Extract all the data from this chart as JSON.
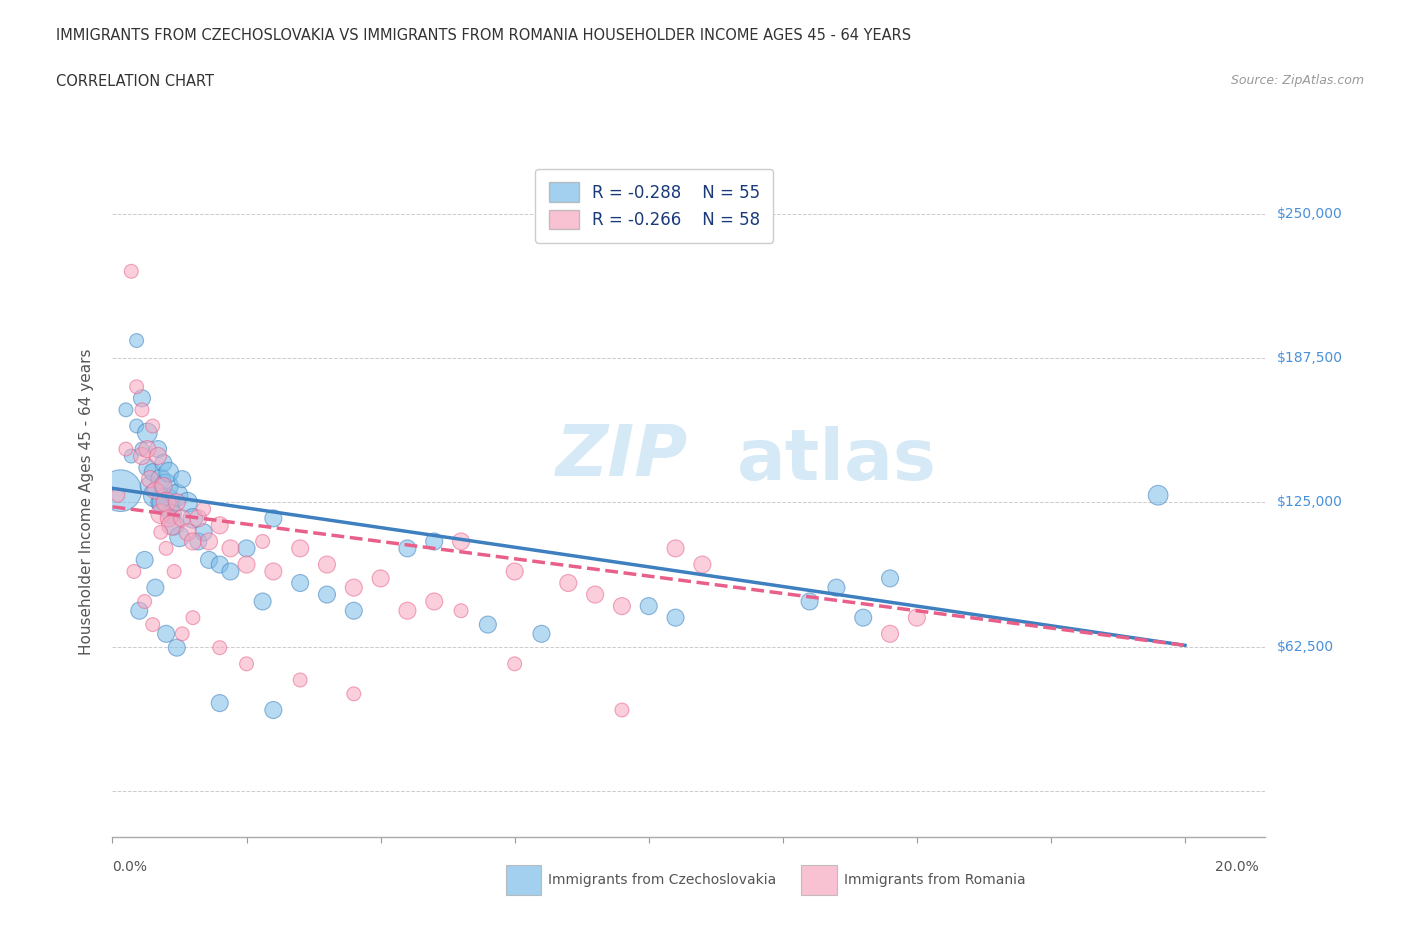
{
  "title_line1": "IMMIGRANTS FROM CZECHOSLOVAKIA VS IMMIGRANTS FROM ROMANIA HOUSEHOLDER INCOME AGES 45 - 64 YEARS",
  "title_line2": "CORRELATION CHART",
  "source": "Source: ZipAtlas.com",
  "xlabel_ticks": [
    "0.0%",
    "20.0%"
  ],
  "xlabel_tick_vals": [
    0.0,
    20.0
  ],
  "ylabel_tick_vals": [
    0,
    62500,
    125000,
    187500,
    250000
  ],
  "ylabel_right_labels": [
    "$250,000",
    "$187,500",
    "$125,000",
    "$62,500"
  ],
  "ylabel_right_vals": [
    250000,
    187500,
    125000,
    62500
  ],
  "xlim": [
    0.0,
    21.5
  ],
  "ylim": [
    -20000,
    270000
  ],
  "ylabel": "Householder Income Ages 45 - 64 years",
  "legend_labels": [
    "Immigrants from Czechoslovakia",
    "Immigrants from Romania"
  ],
  "r_czech": -0.288,
  "r_rom": -0.266,
  "color_czech": "#7bbde8",
  "color_rom": "#f7a8bf",
  "color_czech_line": "#3e7fbf",
  "color_rom_line": "#e8608a",
  "czech_intercept": 131000,
  "czech_slope": -3400,
  "rom_intercept": 123000,
  "rom_slope": -3000,
  "czech_x": [
    0.15,
    0.25,
    0.35,
    0.45,
    0.45,
    0.55,
    0.55,
    0.65,
    0.65,
    0.7,
    0.75,
    0.8,
    0.85,
    0.9,
    0.9,
    0.95,
    1.0,
    1.0,
    1.05,
    1.1,
    1.15,
    1.2,
    1.25,
    1.3,
    1.4,
    1.5,
    1.6,
    1.7,
    1.8,
    2.0,
    2.2,
    2.5,
    2.8,
    3.0,
    3.5,
    4.0,
    4.5,
    5.5,
    6.0,
    7.0,
    8.0,
    10.0,
    10.5,
    13.0,
    13.5,
    14.0,
    14.5,
    19.5,
    2.0,
    3.0,
    0.5,
    0.6,
    0.8,
    1.0,
    1.2
  ],
  "czech_y": [
    130000,
    165000,
    145000,
    195000,
    158000,
    170000,
    148000,
    155000,
    140000,
    132000,
    138000,
    128000,
    148000,
    135000,
    125000,
    142000,
    125000,
    132000,
    138000,
    120000,
    115000,
    128000,
    110000,
    135000,
    125000,
    118000,
    108000,
    112000,
    100000,
    98000,
    95000,
    105000,
    82000,
    118000,
    90000,
    85000,
    78000,
    105000,
    108000,
    72000,
    68000,
    80000,
    75000,
    82000,
    88000,
    75000,
    92000,
    128000,
    38000,
    35000,
    78000,
    100000,
    88000,
    68000,
    62000
  ],
  "czech_size": [
    900,
    100,
    100,
    100,
    100,
    150,
    100,
    200,
    150,
    200,
    150,
    300,
    150,
    200,
    200,
    150,
    400,
    300,
    200,
    200,
    200,
    250,
    200,
    150,
    200,
    200,
    150,
    150,
    150,
    150,
    150,
    150,
    150,
    150,
    150,
    150,
    150,
    150,
    150,
    150,
    150,
    150,
    150,
    150,
    150,
    150,
    150,
    200,
    150,
    150,
    150,
    150,
    150,
    150,
    150
  ],
  "rom_x": [
    0.1,
    0.25,
    0.35,
    0.45,
    0.55,
    0.55,
    0.65,
    0.7,
    0.75,
    0.8,
    0.85,
    0.9,
    0.95,
    1.0,
    1.05,
    1.1,
    1.2,
    1.3,
    1.4,
    1.5,
    1.6,
    1.7,
    1.8,
    2.0,
    2.2,
    2.5,
    2.8,
    3.0,
    3.5,
    4.0,
    4.5,
    5.0,
    5.5,
    6.0,
    6.5,
    7.5,
    8.5,
    9.0,
    9.5,
    10.5,
    11.0,
    14.5,
    15.0,
    0.4,
    0.6,
    0.75,
    0.9,
    1.0,
    1.15,
    1.3,
    1.5,
    2.0,
    2.5,
    3.5,
    4.5,
    6.5,
    7.5,
    9.5
  ],
  "rom_y": [
    128000,
    148000,
    225000,
    175000,
    145000,
    165000,
    148000,
    135000,
    158000,
    130000,
    145000,
    120000,
    132000,
    125000,
    118000,
    115000,
    125000,
    118000,
    112000,
    108000,
    118000,
    122000,
    108000,
    115000,
    105000,
    98000,
    108000,
    95000,
    105000,
    98000,
    88000,
    92000,
    78000,
    82000,
    108000,
    95000,
    90000,
    85000,
    80000,
    105000,
    98000,
    68000,
    75000,
    95000,
    82000,
    72000,
    112000,
    105000,
    95000,
    68000,
    75000,
    62000,
    55000,
    48000,
    42000,
    78000,
    55000,
    35000
  ],
  "rom_size": [
    100,
    100,
    100,
    100,
    150,
    100,
    150,
    150,
    100,
    150,
    150,
    200,
    150,
    200,
    150,
    200,
    150,
    150,
    150,
    150,
    150,
    100,
    150,
    150,
    150,
    150,
    100,
    150,
    150,
    150,
    150,
    150,
    150,
    150,
    150,
    150,
    150,
    150,
    150,
    150,
    150,
    150,
    150,
    100,
    100,
    100,
    100,
    100,
    100,
    100,
    100,
    100,
    100,
    100,
    100,
    100,
    100,
    100
  ]
}
